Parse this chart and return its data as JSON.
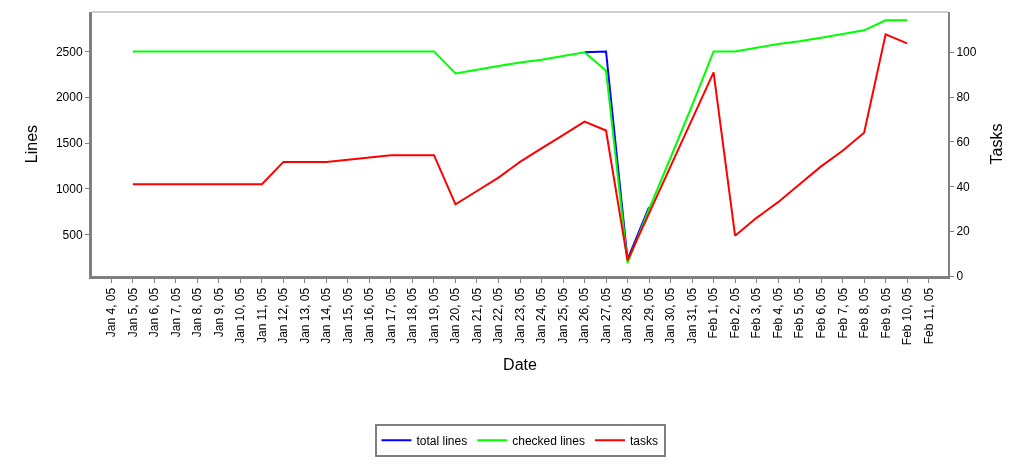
{
  "chart_data": {
    "type": "line",
    "xlabel": "Date",
    "ylabel": "Lines",
    "y2label": "Tasks",
    "categories": [
      "Jan 4, 05",
      "Jan 5, 05",
      "Jan 6, 05",
      "Jan 7, 05",
      "Jan 8, 05",
      "Jan 9, 05",
      "Jan 10, 05",
      "Jan 11, 05",
      "Jan 12, 05",
      "Jan 13, 05",
      "Jan 14, 05",
      "Jan 15, 05",
      "Jan 16, 05",
      "Jan 17, 05",
      "Jan 18, 05",
      "Jan 19, 05",
      "Jan 20, 05",
      "Jan 21, 05",
      "Jan 22, 05",
      "Jan 23, 05",
      "Jan 24, 05",
      "Jan 25, 05",
      "Jan 26, 05",
      "Jan 27, 05",
      "Jan 28, 05",
      "Jan 29, 05",
      "Jan 30, 05",
      "Jan 31, 05",
      "Feb 1, 05",
      "Feb 2, 05",
      "Feb 3, 05",
      "Feb 4, 05",
      "Feb 5, 05",
      "Feb 6, 05",
      "Feb 7, 05",
      "Feb 8, 05",
      "Feb 9, 05",
      "Feb 10, 05",
      "Feb 11, 05"
    ],
    "series": [
      {
        "name": "total lines",
        "color": "#0000ff",
        "values": [
          null,
          null,
          null,
          null,
          null,
          null,
          null,
          null,
          null,
          null,
          null,
          null,
          null,
          null,
          null,
          null,
          null,
          null,
          null,
          null,
          null,
          null,
          2490,
          2500,
          230,
          800,
          null,
          null,
          null,
          null,
          null,
          null,
          null,
          null,
          null,
          null,
          null,
          null,
          null
        ]
      },
      {
        "name": "checked lines",
        "color": "#00ff00",
        "values": [
          null,
          2500,
          2500,
          2500,
          2500,
          2500,
          2500,
          2500,
          2500,
          2500,
          2500,
          2500,
          2500,
          2500,
          2500,
          2500,
          2260,
          2300,
          2340,
          2380,
          2410,
          2450,
          2490,
          2290,
          190,
          780,
          1340,
          1910,
          2500,
          2500,
          2540,
          2580,
          2610,
          2650,
          2690,
          2730,
          2840,
          2840,
          null
        ]
      },
      {
        "name": "tasks",
        "color": "#ff0000",
        "axis": "y2",
        "values": [
          null,
          41,
          41,
          41,
          41,
          41,
          41,
          41,
          51,
          51,
          51,
          52,
          53,
          54,
          54,
          54,
          32,
          38,
          44,
          51,
          57,
          63,
          69,
          65,
          7,
          28,
          49,
          70,
          91,
          18,
          26,
          33,
          41,
          49,
          56,
          64,
          108,
          104,
          null
        ]
      }
    ],
    "ylim": [
      50,
      2930
    ],
    "yticks": [
      500,
      1000,
      1500,
      2000,
      2500
    ],
    "y2lim": [
      0,
      118
    ],
    "y2ticks": [
      0,
      20,
      40,
      60,
      80,
      100
    ],
    "legend": "bottom",
    "marker": "none",
    "line_style": "solid"
  }
}
